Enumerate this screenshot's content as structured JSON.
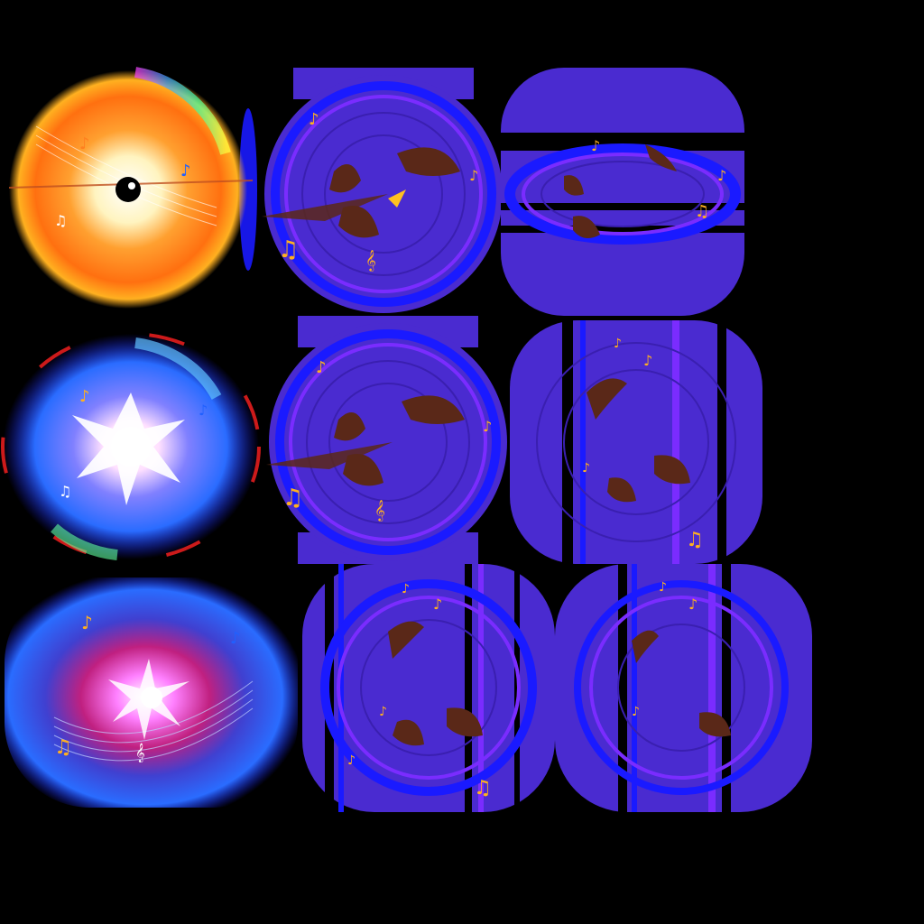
{
  "sheet": {
    "background": "#000000",
    "rows": 3,
    "frames_per_row": [
      3,
      3,
      3
    ]
  },
  "colors": {
    "indigo_fill": "#4a2bd0",
    "indigo_dark": "#3a1fb0",
    "ring_blue": "#1a1aff",
    "ring_violet": "#7a2cff",
    "orange_burst": "#ff7a10",
    "gold_flare": "#ffc020",
    "white_core": "#ffffff",
    "blue_glow": "#2a6cff",
    "red_edge": "#ff2020",
    "shadow_brown": "#5a2818",
    "note_gold": "#ffb020"
  },
  "frames": [
    {
      "id": "burst-orange",
      "kind": "burst",
      "variant": "orange"
    },
    {
      "id": "disc-ring-1",
      "kind": "disc",
      "variant": "ring"
    },
    {
      "id": "disc-banded-1",
      "kind": "disc",
      "variant": "banded"
    },
    {
      "id": "burst-blue",
      "kind": "burst",
      "variant": "blue"
    },
    {
      "id": "disc-ring-2",
      "kind": "disc",
      "variant": "ring"
    },
    {
      "id": "disc-striped-1",
      "kind": "disc",
      "variant": "striped"
    },
    {
      "id": "burst-purple",
      "kind": "burst",
      "variant": "purple"
    },
    {
      "id": "disc-striped-2",
      "kind": "disc",
      "variant": "striped"
    },
    {
      "id": "disc-striped-3",
      "kind": "disc",
      "variant": "striped"
    }
  ],
  "icons": {
    "note": "music-note-icon",
    "treble": "treble-clef-icon"
  },
  "glyphs": {
    "note": "♪",
    "double_note": "♫",
    "treble": "𝄞"
  }
}
